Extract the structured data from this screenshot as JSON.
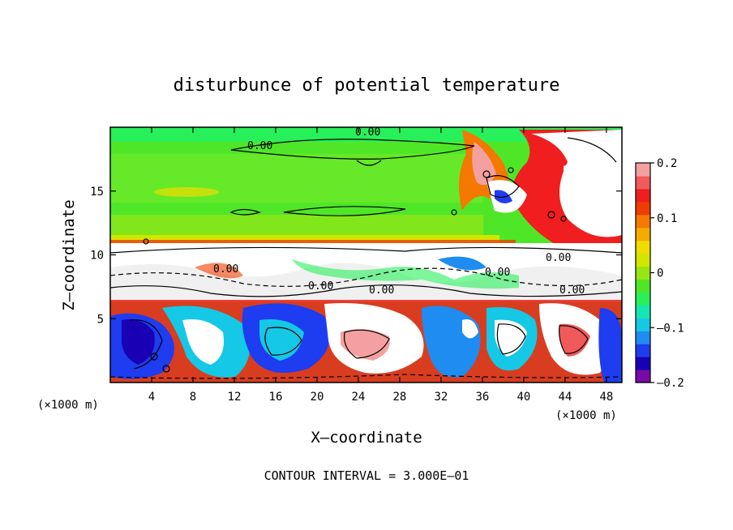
{
  "chart_data": {
    "type": "heatmap",
    "title": "disturbunce of potential temperature",
    "xlabel": "X–coordinate",
    "ylabel": "Z–coordinate",
    "x_unit": "(×1000 m)",
    "y_unit": "(×1000 m)",
    "x_ticks": [
      4,
      8,
      12,
      16,
      20,
      24,
      28,
      32,
      36,
      40,
      44,
      48
    ],
    "y_ticks": [
      5,
      10,
      15
    ],
    "xlim": [
      0,
      49.5
    ],
    "ylim": [
      0,
      20
    ],
    "colorbar": {
      "ticks": [
        "0.2",
        "0.1",
        "0",
        "–0.1",
        "–0.2"
      ],
      "tick_values": [
        0.2,
        0.1,
        0,
        -0.1,
        -0.2
      ],
      "range": [
        -0.2,
        0.2
      ],
      "colors": [
        "#7a0aa6",
        "#1a00b4",
        "#1e3cf0",
        "#1e8cf0",
        "#14c8e6",
        "#14e6b4",
        "#28f05a",
        "#50e628",
        "#96e614",
        "#d2e600",
        "#f0dc00",
        "#f5aa00",
        "#f57800",
        "#f03c00",
        "#f01e1e",
        "#f05a5a",
        "#f5a0a0"
      ]
    },
    "contour_labels": [
      "0.00",
      "0.00",
      "0.00",
      "0.00",
      "0.00",
      "0.00",
      "0.00",
      "0.00"
    ],
    "footer": "CONTOUR INTERVAL = 3.000E–01"
  }
}
